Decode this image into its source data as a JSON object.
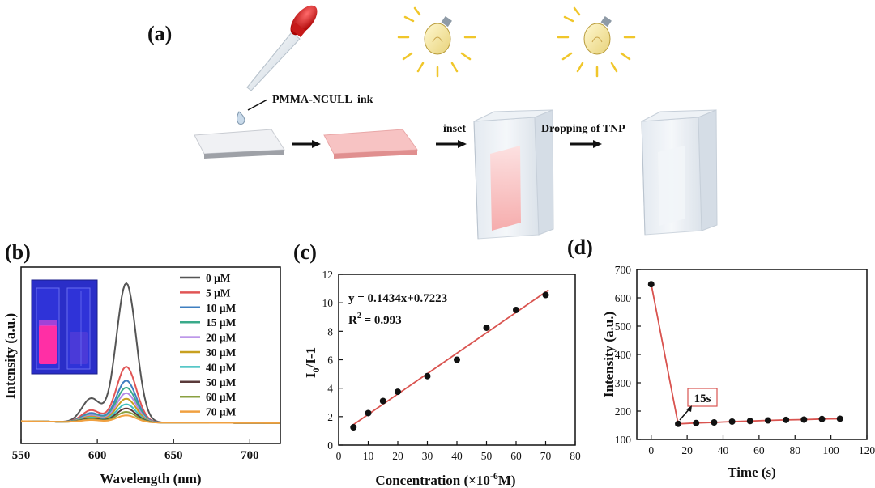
{
  "panel_a": {
    "label": "(a)",
    "ink_label": "PMMA-NCULL  ink",
    "step2_label": "inset",
    "step3_label": "Dropping of TNP"
  },
  "chart_data": [
    {
      "id": "b",
      "panel_label": "(b)",
      "type": "line",
      "title": "",
      "xlabel": "Wavelength (nm)",
      "ylabel": "Intensity (a.u.)",
      "xlim": [
        550,
        720
      ],
      "xticks": [
        550,
        600,
        650,
        700
      ],
      "yticks": [],
      "legend_position": "top-right",
      "series": [
        {
          "name": "0 μM",
          "color": "#555555",
          "peak_main": 1.0,
          "peak_side": 0.17
        },
        {
          "name": "5 μM",
          "color": "#e05555",
          "peak_main": 0.4,
          "peak_side": 0.085
        },
        {
          "name": "10 μM",
          "color": "#3f7fc0",
          "peak_main": 0.3,
          "peak_side": 0.065
        },
        {
          "name": "15 μM",
          "color": "#3aaa8a",
          "peak_main": 0.25,
          "peak_side": 0.055
        },
        {
          "name": "20 μM",
          "color": "#b48ae6",
          "peak_main": 0.21,
          "peak_side": 0.048
        },
        {
          "name": "30 μM",
          "color": "#c8a020",
          "peak_main": 0.17,
          "peak_side": 0.04
        },
        {
          "name": "40 μM",
          "color": "#3fbfbf",
          "peak_main": 0.13,
          "peak_side": 0.032
        },
        {
          "name": "50 μM",
          "color": "#5a3a3a",
          "peak_main": 0.1,
          "peak_side": 0.026
        },
        {
          "name": "60 μM",
          "color": "#8aa040",
          "peak_main": 0.075,
          "peak_side": 0.02
        },
        {
          "name": "70 μM",
          "color": "#f0a040",
          "peak_main": 0.05,
          "peak_side": 0.015
        }
      ]
    },
    {
      "id": "c",
      "panel_label": "(c)",
      "type": "scatter",
      "title": "",
      "xlabel": "Concentration (×10",
      "xlabel_sup": "-6",
      "xlabel_end": "M)",
      "ylabel": "I",
      "ylabel_sub": "0",
      "ylabel_end": "/I-1",
      "xlim": [
        0,
        80
      ],
      "ylim": [
        0,
        12
      ],
      "xticks": [
        0,
        10,
        20,
        30,
        40,
        50,
        60,
        70,
        80
      ],
      "yticks": [
        0,
        2,
        4,
        6,
        8,
        10,
        12
      ],
      "x": [
        5,
        10,
        15,
        20,
        30,
        40,
        50,
        60,
        70
      ],
      "y": [
        1.25,
        2.25,
        3.1,
        3.75,
        4.85,
        6.0,
        8.25,
        9.5,
        10.55
      ],
      "fit": {
        "slope": 0.1434,
        "intercept": 0.7223,
        "x_range": [
          4,
          71
        ]
      },
      "equation": "y = 0.1434x+0.7223",
      "r2_label": "R",
      "r2_sup": "2",
      "r2_value": " = 0.993",
      "point_color": "#111111",
      "line_color": "#d9534f"
    },
    {
      "id": "d",
      "panel_label": "(d)",
      "type": "line",
      "title": "",
      "xlabel": "Time (s)",
      "ylabel": "Intensity (a.u.)",
      "xlim": [
        -8,
        120
      ],
      "ylim": [
        100,
        700
      ],
      "xticks": [
        0,
        20,
        40,
        60,
        80,
        100,
        120
      ],
      "yticks": [
        100,
        200,
        300,
        400,
        500,
        600,
        700
      ],
      "x": [
        0,
        15,
        25,
        35,
        45,
        55,
        65,
        75,
        85,
        95,
        105
      ],
      "y": [
        648,
        155,
        158,
        160,
        163,
        165,
        167,
        169,
        170,
        172,
        173
      ],
      "annotation": "15s",
      "point_color": "#111111",
      "line_color": "#d9534f"
    }
  ]
}
